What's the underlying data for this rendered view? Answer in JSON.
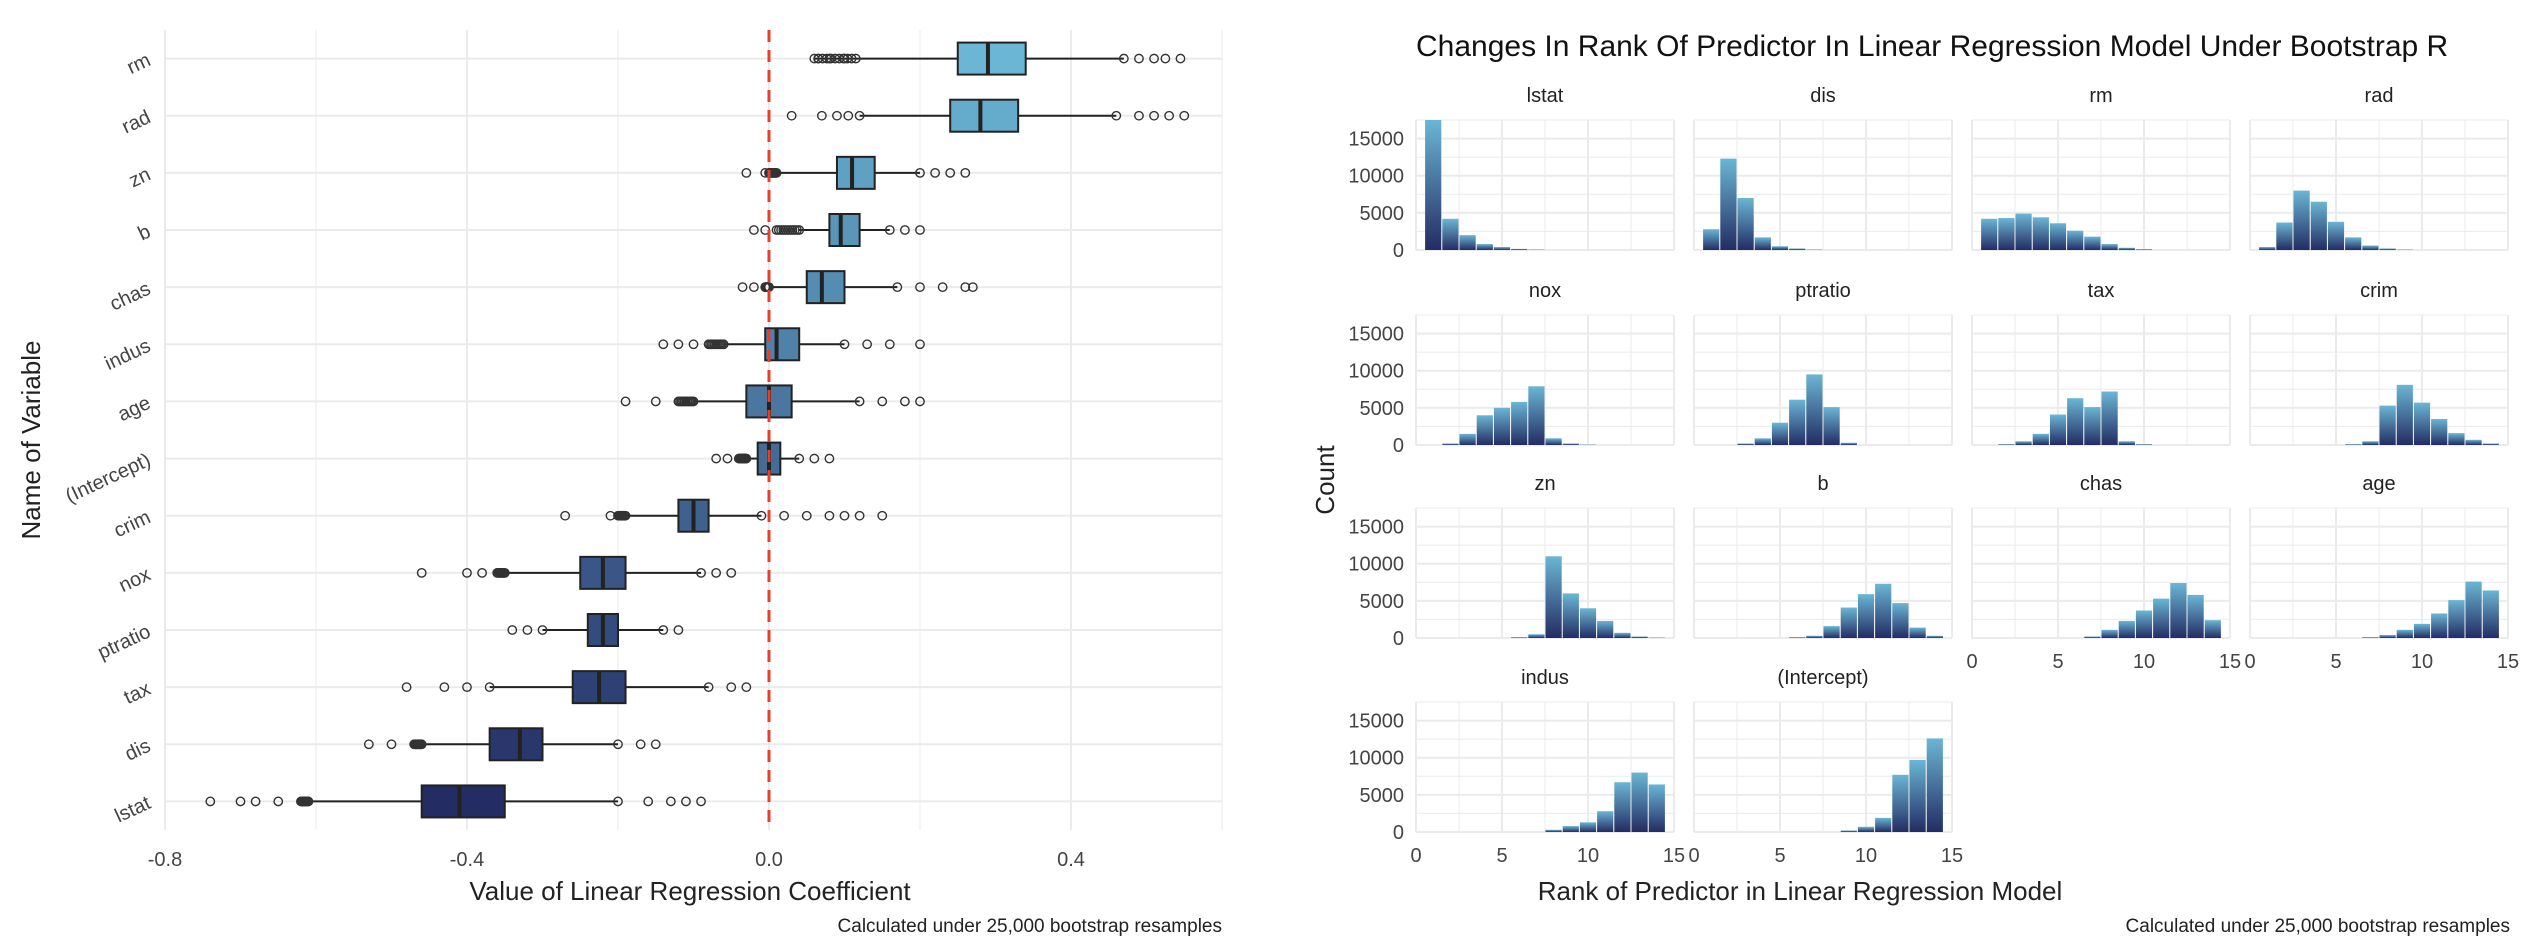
{
  "colors": {
    "reference_line": "#e5402b",
    "grid": "#ebebeb",
    "box_outline": "#222222",
    "fill_high": "#6bb6d4",
    "fill_low": "#232c63"
  },
  "chart_data": [
    {
      "type": "boxplot",
      "orientation": "horizontal",
      "title": "",
      "xlabel": "Value of Linear Regression Coefficient",
      "ylabel": "Name of Variable",
      "caption": "Calculated under 25,000 bootstrap resamples",
      "xlim": [
        -0.8,
        0.6
      ],
      "x_ticks": [
        "-0.8",
        "-0.4",
        "0.0",
        "0.4"
      ],
      "reference_line_x": 0,
      "grid": true,
      "categories": [
        "rm",
        "rad",
        "zn",
        "b",
        "chas",
        "indus",
        "age",
        "(Intercept)",
        "crim",
        "nox",
        "ptratio",
        "tax",
        "dis",
        "lstat"
      ],
      "boxes": [
        {
          "name": "rm",
          "whisker_low": 0.06,
          "q1": 0.25,
          "median": 0.29,
          "q3": 0.34,
          "whisker_high": 0.47,
          "out_low": [
            0.065,
            0.08,
            0.1,
            0.115
          ],
          "out_high": [
            0.47,
            0.49,
            0.51,
            0.525,
            0.545
          ]
        },
        {
          "name": "rad",
          "whisker_low": 0.12,
          "q1": 0.24,
          "median": 0.28,
          "q3": 0.33,
          "whisker_high": 0.46,
          "out_low": [
            0.03,
            0.07,
            0.09,
            0.105,
            0.12
          ],
          "out_high": [
            0.46,
            0.49,
            0.51,
            0.53,
            0.55
          ]
        },
        {
          "name": "zn",
          "whisker_low": 0.0,
          "q1": 0.09,
          "median": 0.11,
          "q3": 0.14,
          "whisker_high": 0.2,
          "out_low": [
            -0.03,
            -0.005,
            0.01
          ],
          "out_high": [
            0.2,
            0.22,
            0.24,
            0.26
          ]
        },
        {
          "name": "b",
          "whisker_low": 0.04,
          "q1": 0.08,
          "median": 0.095,
          "q3": 0.12,
          "whisker_high": 0.16,
          "out_low": [
            -0.02,
            -0.005,
            0.01
          ],
          "out_high": [
            0.16,
            0.18,
            0.2
          ]
        },
        {
          "name": "chas",
          "whisker_low": 0.0,
          "q1": 0.05,
          "median": 0.07,
          "q3": 0.1,
          "whisker_high": 0.17,
          "out_low": [
            -0.035,
            -0.02,
            -0.005
          ],
          "out_high": [
            0.17,
            0.2,
            0.23,
            0.26,
            0.27
          ]
        },
        {
          "name": "indus",
          "whisker_low": -0.06,
          "q1": -0.005,
          "median": 0.01,
          "q3": 0.04,
          "whisker_high": 0.1,
          "out_low": [
            -0.14,
            -0.12,
            -0.1,
            -0.08
          ],
          "out_high": [
            0.1,
            0.13,
            0.16,
            0.2
          ]
        },
        {
          "name": "age",
          "whisker_low": -0.1,
          "q1": -0.03,
          "median": 0.0,
          "q3": 0.03,
          "whisker_high": 0.12,
          "out_low": [
            -0.19,
            -0.15,
            -0.12
          ],
          "out_high": [
            0.12,
            0.15,
            0.18,
            0.2
          ]
        },
        {
          "name": "(Intercept)",
          "whisker_low": -0.03,
          "q1": -0.015,
          "median": 0.0,
          "q3": 0.015,
          "whisker_high": 0.04,
          "out_low": [
            -0.07,
            -0.055,
            -0.04
          ],
          "out_high": [
            0.04,
            0.06,
            0.08
          ]
        },
        {
          "name": "crim",
          "whisker_low": -0.2,
          "q1": -0.12,
          "median": -0.1,
          "q3": -0.08,
          "whisker_high": -0.01,
          "out_low": [
            -0.27,
            -0.21,
            -0.19
          ],
          "out_high": [
            -0.01,
            0.02,
            0.05,
            0.08,
            0.1,
            0.12,
            0.15
          ]
        },
        {
          "name": "nox",
          "whisker_low": -0.35,
          "q1": -0.25,
          "median": -0.22,
          "q3": -0.19,
          "whisker_high": -0.09,
          "out_low": [
            -0.46,
            -0.4,
            -0.38,
            -0.36
          ],
          "out_high": [
            -0.09,
            -0.07,
            -0.05
          ]
        },
        {
          "name": "ptratio",
          "whisker_low": -0.3,
          "q1": -0.24,
          "median": -0.22,
          "q3": -0.2,
          "whisker_high": -0.14,
          "out_low": [
            -0.34,
            -0.32,
            -0.3
          ],
          "out_high": [
            -0.14,
            -0.12
          ]
        },
        {
          "name": "tax",
          "whisker_low": -0.37,
          "q1": -0.26,
          "median": -0.225,
          "q3": -0.19,
          "whisker_high": -0.08,
          "out_low": [
            -0.48,
            -0.43,
            -0.4,
            -0.37
          ],
          "out_high": [
            -0.08,
            -0.05,
            -0.03
          ]
        },
        {
          "name": "dis",
          "whisker_low": -0.46,
          "q1": -0.37,
          "median": -0.33,
          "q3": -0.3,
          "whisker_high": -0.2,
          "out_low": [
            -0.53,
            -0.5,
            -0.47
          ],
          "out_high": [
            -0.2,
            -0.17,
            -0.15
          ]
        },
        {
          "name": "lstat",
          "whisker_low": -0.61,
          "q1": -0.46,
          "median": -0.41,
          "q3": -0.35,
          "whisker_high": -0.2,
          "out_low": [
            -0.74,
            -0.7,
            -0.68,
            -0.65,
            -0.62
          ],
          "out_high": [
            -0.2,
            -0.16,
            -0.13,
            -0.11,
            -0.09
          ]
        }
      ]
    },
    {
      "type": "bar",
      "subtype": "faceted-histogram",
      "title": "Changes In Rank Of Predictor In Linear Regression Model Under Bootstrap R",
      "xlabel": "Rank of Predictor in Linear Regression Model",
      "ylabel": "Count",
      "caption": "Calculated under 25,000 bootstrap resamples",
      "xlim": [
        0,
        15
      ],
      "ylim": [
        0,
        17500
      ],
      "x_ticks": [
        "0",
        "5",
        "10",
        "15"
      ],
      "y_ticks": [
        "0",
        "5000",
        "10000",
        "15000"
      ],
      "x": [
        1,
        2,
        3,
        4,
        5,
        6,
        7,
        8,
        9,
        10,
        11,
        12,
        13,
        14
      ],
      "grid": true,
      "facets": [
        {
          "name": "lstat",
          "values": [
            17500,
            4200,
            2000,
            800,
            400,
            150,
            50,
            0,
            0,
            0,
            0,
            0,
            0,
            0
          ]
        },
        {
          "name": "dis",
          "values": [
            2800,
            12300,
            7000,
            1700,
            500,
            200,
            50,
            0,
            0,
            0,
            0,
            0,
            0,
            0
          ]
        },
        {
          "name": "rm",
          "values": [
            4200,
            4300,
            4900,
            4400,
            3600,
            2600,
            1800,
            800,
            300,
            100,
            0,
            0,
            0,
            0
          ]
        },
        {
          "name": "rad",
          "values": [
            400,
            3700,
            8000,
            6500,
            3800,
            1700,
            600,
            200,
            50,
            0,
            0,
            0,
            0,
            0
          ]
        },
        {
          "name": "nox",
          "values": [
            0,
            200,
            1500,
            4000,
            5000,
            5800,
            7900,
            900,
            200,
            50,
            0,
            0,
            0,
            0
          ]
        },
        {
          "name": "ptratio",
          "values": [
            0,
            0,
            200,
            900,
            3000,
            6100,
            9500,
            5100,
            300,
            0,
            0,
            0,
            0,
            0
          ]
        },
        {
          "name": "tax",
          "values": [
            0,
            100,
            500,
            1500,
            4100,
            6300,
            5100,
            7200,
            500,
            100,
            0,
            0,
            0,
            0
          ]
        },
        {
          "name": "crim",
          "values": [
            0,
            0,
            0,
            0,
            0,
            100,
            500,
            5300,
            8100,
            5700,
            3500,
            1600,
            700,
            200
          ]
        },
        {
          "name": "zn",
          "values": [
            0,
            0,
            0,
            0,
            0,
            100,
            500,
            11000,
            6000,
            4000,
            2300,
            700,
            200,
            50
          ]
        },
        {
          "name": "b",
          "values": [
            0,
            0,
            0,
            0,
            0,
            100,
            300,
            1600,
            4100,
            5900,
            7300,
            4700,
            1400,
            300
          ]
        },
        {
          "name": "chas",
          "values": [
            0,
            0,
            0,
            0,
            0,
            0,
            200,
            1100,
            2300,
            3700,
            5300,
            7400,
            5800,
            2400
          ]
        },
        {
          "name": "age",
          "values": [
            0,
            0,
            0,
            0,
            0,
            0,
            100,
            400,
            1100,
            1900,
            3300,
            5100,
            7600,
            6400
          ]
        },
        {
          "name": "indus",
          "values": [
            0,
            0,
            0,
            0,
            0,
            0,
            0,
            300,
            800,
            1300,
            2800,
            6700,
            8000,
            6400
          ]
        },
        {
          "name": "(Intercept)",
          "values": [
            0,
            0,
            0,
            0,
            0,
            0,
            0,
            0,
            200,
            700,
            1900,
            7700,
            9700,
            12600
          ]
        }
      ]
    }
  ]
}
